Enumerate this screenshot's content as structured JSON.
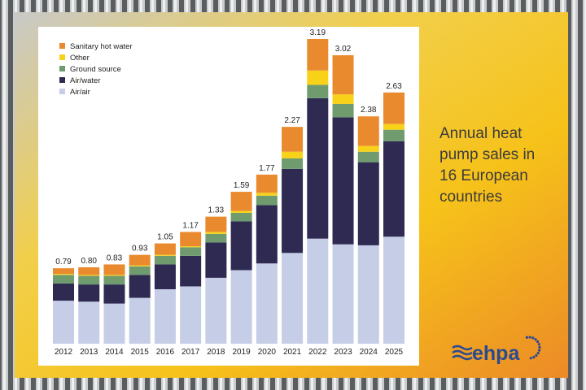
{
  "chart_data": {
    "type": "stacked-bar",
    "title": "Annual heat pump sales in 16 European countries",
    "categories": [
      "2012",
      "2013",
      "2014",
      "2015",
      "2016",
      "2017",
      "2018",
      "2019",
      "2020",
      "2021",
      "2022",
      "2023",
      "2024",
      "2025"
    ],
    "series": [
      {
        "name": "Air/air",
        "color": "#c6cee7",
        "values": [
          0.45,
          0.44,
          0.42,
          0.48,
          0.57,
          0.6,
          0.69,
          0.77,
          0.84,
          0.95,
          1.1,
          1.04,
          1.03,
          1.12
        ]
      },
      {
        "name": "Air/water",
        "color": "#2e2a52",
        "values": [
          0.18,
          0.18,
          0.2,
          0.24,
          0.26,
          0.32,
          0.37,
          0.51,
          0.61,
          0.88,
          1.47,
          1.33,
          0.87,
          1.0
        ]
      },
      {
        "name": "Ground source",
        "color": "#6f9b6f",
        "values": [
          0.09,
          0.09,
          0.09,
          0.09,
          0.09,
          0.09,
          0.09,
          0.09,
          0.1,
          0.11,
          0.14,
          0.14,
          0.11,
          0.12
        ]
      },
      {
        "name": "Other",
        "color": "#f8d219",
        "values": [
          0.01,
          0.01,
          0.01,
          0.01,
          0.01,
          0.01,
          0.02,
          0.02,
          0.03,
          0.07,
          0.15,
          0.1,
          0.06,
          0.06
        ]
      },
      {
        "name": "Sanitary hot water",
        "color": "#e98a2f",
        "values": [
          0.06,
          0.08,
          0.11,
          0.11,
          0.12,
          0.15,
          0.16,
          0.2,
          0.19,
          0.26,
          0.33,
          0.41,
          0.31,
          0.33
        ]
      }
    ],
    "totals": {
      "values": [
        0.79,
        0.8,
        0.83,
        0.93,
        1.05,
        1.17,
        1.33,
        1.59,
        1.77,
        2.27,
        3.19,
        3.02,
        2.38,
        2.63
      ],
      "value_labels": [
        "0.79",
        "0.80",
        "0.83",
        "0.93",
        "1.05",
        "1.17",
        "1.33",
        "1.59",
        "1.77",
        "2.27",
        "3.19",
        "3.02",
        "2.38",
        "2.63"
      ]
    },
    "logo": "ehpa"
  }
}
